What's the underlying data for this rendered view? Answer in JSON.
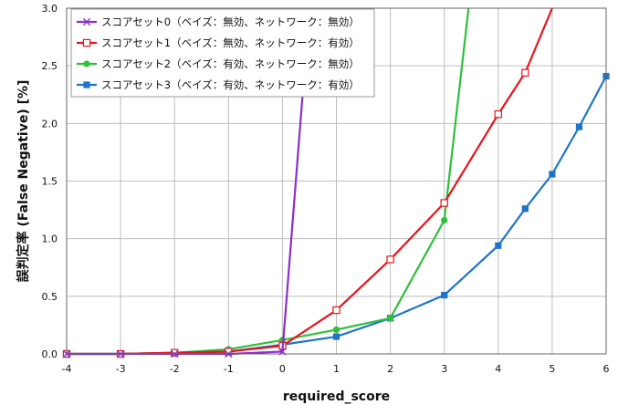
{
  "chart_data": {
    "type": "line",
    "xlabel": "required_score",
    "ylabel": "誤判定率 (False Negative) [%]",
    "xlim": [
      -4,
      6
    ],
    "ylim": [
      0,
      3.0
    ],
    "x_ticks": [
      "-4",
      "-3",
      "-2",
      "-1",
      "0",
      "1",
      "2",
      "3",
      "4",
      "5",
      "6"
    ],
    "y_ticks": [
      "0.0",
      "0.5",
      "1.0",
      "1.5",
      "2.0",
      "2.5",
      "3.0"
    ],
    "grid": true,
    "legend_position": "top-left",
    "series": [
      {
        "name": "スコアセット0（ベイズ：無効、ネットワーク：無効）",
        "color": "#8b2fc9",
        "marker": "x",
        "x": [
          -4,
          -3,
          -2,
          -1,
          0,
          0.5
        ],
        "y": [
          0,
          0,
          0,
          0,
          0.02,
          3.0
        ]
      },
      {
        "name": "スコアセット1（ベイズ：無効、ネットワーク：有効）",
        "color": "#e8141b",
        "marker": "square-open",
        "x": [
          -4,
          -3,
          -2,
          -1,
          0,
          1,
          2,
          3,
          4,
          4.5,
          5
        ],
        "y": [
          0,
          0,
          0.01,
          0.02,
          0.07,
          0.38,
          0.82,
          1.31,
          2.08,
          2.44,
          3.0
        ]
      },
      {
        "name": "スコアセット2（ベイズ：有効、ネットワーク：無効）",
        "color": "#2fbf3a",
        "marker": "circle",
        "x": [
          -4,
          -3,
          -2,
          -1,
          0,
          1,
          2,
          3,
          3.45
        ],
        "y": [
          0,
          0,
          0.01,
          0.04,
          0.12,
          0.21,
          0.31,
          1.16,
          3.0
        ]
      },
      {
        "name": "スコアセット3（ベイズ：有効、ネットワーク：有効）",
        "color": "#1f74c8",
        "marker": "square",
        "x": [
          -4,
          -3,
          -2,
          -1,
          0,
          1,
          2,
          3,
          4,
          4.5,
          5,
          5.5,
          6
        ],
        "y": [
          0,
          0,
          0.01,
          0.02,
          0.08,
          0.15,
          0.31,
          0.51,
          0.94,
          1.26,
          1.56,
          1.97,
          2.41
        ]
      }
    ]
  }
}
